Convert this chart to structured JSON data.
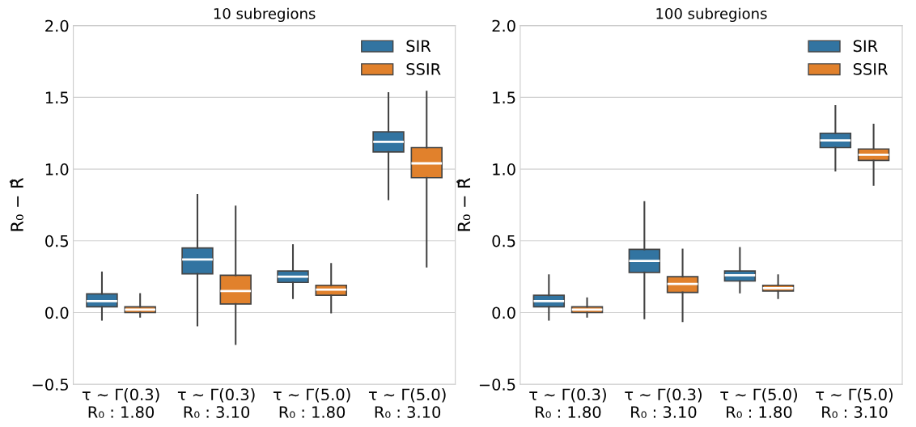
{
  "chart_data": [
    {
      "type": "box",
      "title": "10 subregions",
      "ylabel": "R₀ − R̂",
      "categories": [
        "τ ~ Γ(0.3)\nR₀ : 1.80",
        "τ ~ Γ(0.3)\nR₀ : 3.10",
        "τ ~ Γ(5.0)\nR₀ : 1.80",
        "τ ~ Γ(5.0)\nR₀ : 3.10"
      ],
      "ylim": [
        -0.5,
        2.0
      ],
      "yticks": [
        {
          "value": -0.5,
          "label": "−0.5"
        },
        {
          "value": 0.0,
          "label": "0.0"
        },
        {
          "value": 0.5,
          "label": "0.5"
        },
        {
          "value": 1.0,
          "label": "1.0"
        },
        {
          "value": 1.5,
          "label": "1.5"
        },
        {
          "value": 2.0,
          "label": "2.0"
        }
      ],
      "grid": "y",
      "legend": "top right",
      "series": [
        {
          "name": "SIR",
          "color": "#3274a1",
          "boxes": [
            {
              "low": -0.05,
              "q1": 0.04,
              "median": 0.08,
              "q3": 0.13,
              "high": 0.28
            },
            {
              "low": -0.09,
              "q1": 0.27,
              "median": 0.37,
              "q3": 0.45,
              "high": 0.82
            },
            {
              "low": 0.1,
              "q1": 0.21,
              "median": 0.25,
              "q3": 0.29,
              "high": 0.47
            },
            {
              "low": 0.79,
              "q1": 1.12,
              "median": 1.19,
              "q3": 1.26,
              "high": 1.53
            }
          ]
        },
        {
          "name": "SSIR",
          "color": "#e1812c",
          "boxes": [
            {
              "low": -0.03,
              "q1": 0.0,
              "median": 0.02,
              "q3": 0.04,
              "high": 0.13
            },
            {
              "low": -0.22,
              "q1": 0.06,
              "median": 0.15,
              "q3": 0.26,
              "high": 0.74
            },
            {
              "low": 0.0,
              "q1": 0.12,
              "median": 0.16,
              "q3": 0.19,
              "high": 0.34
            },
            {
              "low": 0.32,
              "q1": 0.94,
              "median": 1.04,
              "q3": 1.15,
              "high": 1.54
            }
          ]
        }
      ]
    },
    {
      "type": "box",
      "title": "100 subregions",
      "ylabel": "R₀ − R̂",
      "categories": [
        "τ ~ Γ(0.3)\nR₀ : 1.80",
        "τ ~ Γ(0.3)\nR₀ : 3.10",
        "τ ~ Γ(5.0)\nR₀ : 1.80",
        "τ ~ Γ(5.0)\nR₀ : 3.10"
      ],
      "ylim": [
        -0.5,
        2.0
      ],
      "yticks": [
        {
          "value": -0.5,
          "label": "−0.5"
        },
        {
          "value": 0.0,
          "label": "0.0"
        },
        {
          "value": 0.5,
          "label": "0.5"
        },
        {
          "value": 1.0,
          "label": "1.0"
        },
        {
          "value": 1.5,
          "label": "1.5"
        },
        {
          "value": 2.0,
          "label": "2.0"
        }
      ],
      "grid": "y",
      "legend": "top right",
      "series": [
        {
          "name": "SIR",
          "color": "#3274a1",
          "boxes": [
            {
              "low": -0.05,
              "q1": 0.04,
              "median": 0.08,
              "q3": 0.12,
              "high": 0.26
            },
            {
              "low": -0.04,
              "q1": 0.28,
              "median": 0.36,
              "q3": 0.44,
              "high": 0.77
            },
            {
              "low": 0.14,
              "q1": 0.22,
              "median": 0.26,
              "q3": 0.29,
              "high": 0.45
            },
            {
              "low": 0.99,
              "q1": 1.15,
              "median": 1.2,
              "q3": 1.25,
              "high": 1.44
            }
          ]
        },
        {
          "name": "SSIR",
          "color": "#e1812c",
          "boxes": [
            {
              "low": -0.03,
              "q1": 0.0,
              "median": 0.02,
              "q3": 0.04,
              "high": 0.1
            },
            {
              "low": -0.06,
              "q1": 0.14,
              "median": 0.2,
              "q3": 0.25,
              "high": 0.44
            },
            {
              "low": 0.1,
              "q1": 0.15,
              "median": 0.17,
              "q3": 0.19,
              "high": 0.26
            },
            {
              "low": 0.89,
              "q1": 1.06,
              "median": 1.1,
              "q3": 1.14,
              "high": 1.31
            }
          ]
        }
      ]
    }
  ]
}
